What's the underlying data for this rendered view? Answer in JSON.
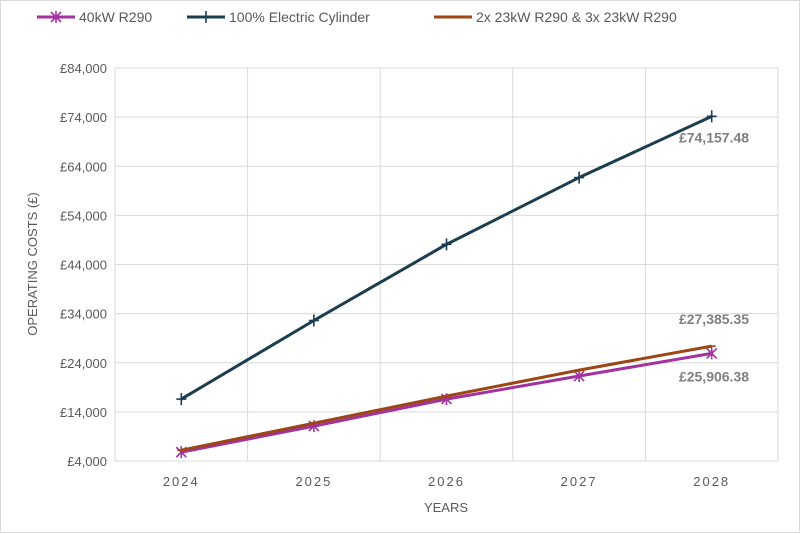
{
  "chart_data": {
    "type": "line",
    "title": "",
    "xlabel": "YEARS",
    "ylabel": "OPERATING COSTS (£)",
    "categories": [
      "2024",
      "2025",
      "2026",
      "2027",
      "2028"
    ],
    "ylim": [
      4000,
      84000
    ],
    "yticks": [
      4000,
      14000,
      24000,
      34000,
      44000,
      54000,
      64000,
      74000,
      84000
    ],
    "ytick_labels": [
      "£4,000",
      "£14,000",
      "£24,000",
      "£34,000",
      "£44,000",
      "£54,000",
      "£64,000",
      "£74,000",
      "£84,000"
    ],
    "grid": true,
    "legend_position": "top",
    "series": [
      {
        "name": "40kW R290",
        "color": "#a3319f",
        "marker": "asterisk",
        "values": [
          5800,
          11100,
          16600,
          21300,
          25906.38
        ],
        "end_label": "£25,906.38"
      },
      {
        "name": "100% Electric Cylinder",
        "color": "#1a3e4f",
        "marker": "plus",
        "values": [
          16600,
          32600,
          48100,
          61700,
          74157.48
        ],
        "end_label": "£74,157.48"
      },
      {
        "name": "2x 23kW R290 & 3x 23kW R290",
        "color": "#9b4614",
        "marker": "dash",
        "values": [
          6200,
          11700,
          17200,
          22500,
          27385.35
        ],
        "end_label": "£27,385.35"
      }
    ]
  }
}
